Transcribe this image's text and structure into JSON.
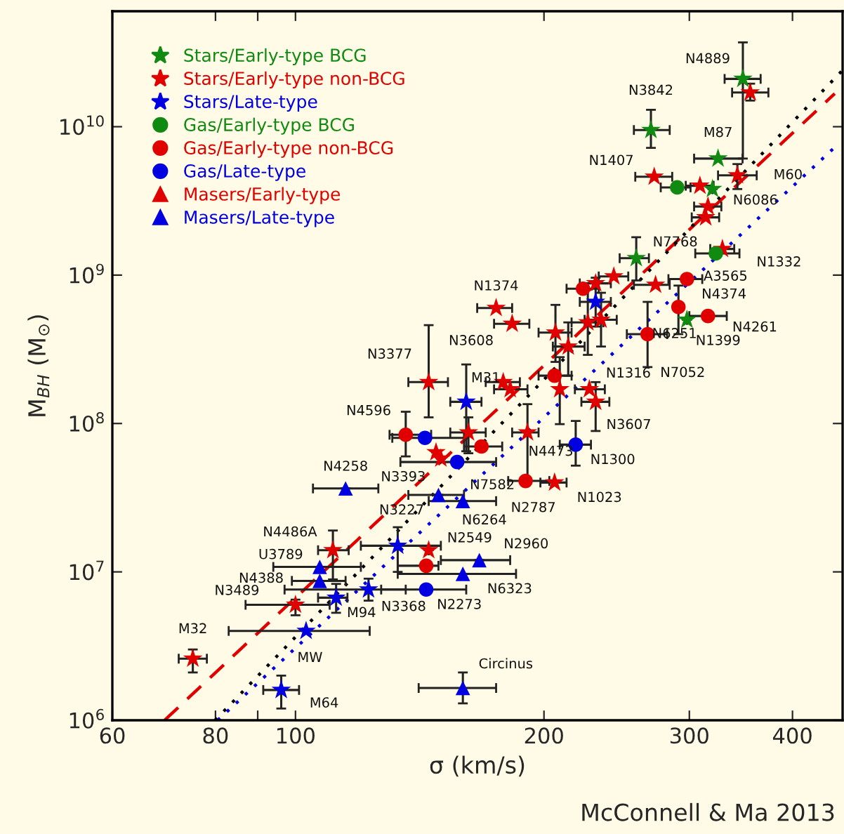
{
  "chart_data": {
    "type": "scatter",
    "xlabel": "σ (km/s)",
    "ylabel": "M$_{BH}$ (M$_{⊙}$)",
    "log": "xy",
    "xlim": [
      60,
      460
    ],
    "ylim": [
      1000000.0,
      60000000000.0
    ],
    "xticks": [
      60,
      80,
      {
        "value": 90,
        "label": null
      },
      100,
      200,
      300,
      400
    ],
    "yticks": [
      {
        "value": 1000000.0,
        "label": "10$^{6}$"
      },
      {
        "value": 10000000.0,
        "label": "10$^{7}$"
      },
      {
        "value": 100000000.0,
        "label": "10$^{8}$"
      },
      {
        "value": 1000000000.0,
        "label": "10$^{9}$"
      },
      {
        "value": 10000000000.0,
        "label": "10$^{10}$"
      }
    ],
    "grid": false,
    "legend": "top left",
    "series": [
      {
        "name": "Stars/Early-type BCG",
        "color": "#108a10",
        "marker": "star",
        "x": [
          348.3,
          269.5,
          325,
          320,
          258.7,
          298
        ],
        "values": [
          21000000000.0,
          9500000000.0,
          6100000000.0,
          3800000000.0,
          1300000000.0,
          500000000.0
        ],
        "xerrors": [
          [
            331,
            366
          ],
          [
            257,
            284
          ],
          [
            304,
            348
          ],
          null,
          [
            247,
            268
          ],
          null
        ],
        "errors": [
          [
            6100000000.0,
            37000000000.0
          ],
          [
            7200000000.0,
            13000000000.0
          ],
          null,
          null,
          [
            920000000.0,
            1800000000.0
          ],
          null
        ]
      },
      {
        "name": "Stars/Early-type non-BCG",
        "color": "#e00000",
        "marker": "star",
        "x": [
          75.1,
          100,
          111,
          145,
          145,
          148,
          150,
          162,
          191,
          206,
          178.5,
          182,
          209,
          227,
          231,
          175,
          183,
          206.5,
          214,
          226,
          234.5,
          231,
          243,
          273,
          329,
          316,
          314,
          309,
          272,
          343,
          355.5
        ],
        "values": [
          2600000.0,
          6000000.0,
          14000000.0,
          14000000.0,
          190000000.0,
          64000000.0,
          58000000.0,
          87000000.0,
          87000000.0,
          40000000.0,
          190000000.0,
          170000000.0,
          170000000.0,
          170000000.0,
          140000000.0,
          600000000.0,
          470000000.0,
          410000000.0,
          330000000.0,
          480000000.0,
          500000000.0,
          880000000.0,
          980000000.0,
          860000000.0,
          1500000000.0,
          2900000000.0,
          2450000000.0,
          4000000000.0,
          4600000000.0,
          4700000000.0,
          17000000000.0
        ],
        "xerrors": [
          [
            72.2,
            78.1
          ],
          [
            87,
            110
          ],
          [
            106.5,
            116
          ],
          null,
          [
            137,
            153
          ],
          null,
          null,
          [
            154,
            170
          ],
          [
            183,
            197
          ],
          [
            198,
            213
          ],
          [
            170,
            187
          ],
          [
            174,
            191
          ],
          null,
          [
            218,
            237
          ],
          [
            222,
            240
          ],
          [
            166,
            183
          ],
          [
            174,
            192
          ],
          [
            197,
            216
          ],
          [
            205,
            224
          ],
          [
            216,
            236
          ],
          [
            224,
            245
          ],
          [
            221,
            241
          ],
          [
            233,
            253
          ],
          [
            257,
            284
          ],
          [
            318,
            340
          ],
          [
            304,
            328
          ],
          [
            302,
            326
          ],
          [
            297,
            321
          ],
          [
            258,
            286
          ],
          [
            325,
            362
          ],
          [
            338,
            374
          ]
        ],
        "errors": [
          [
            2100000.0,
            3000000.0
          ],
          [
            5100000.0,
            6500000.0
          ],
          [
            8900000.0,
            19000000.0
          ],
          null,
          [
            110000000.0,
            460000000.0
          ],
          null,
          null,
          [
            63000000.0,
            110000000.0
          ],
          [
            41000000.0,
            135000000.0
          ],
          null,
          null,
          null,
          [
            99000000.0,
            280000000.0
          ],
          null,
          [
            89000000.0,
            190000000.0
          ],
          null,
          null,
          [
            260000000.0,
            630000000.0
          ],
          [
            210000000.0,
            480000000.0
          ],
          [
            290000000.0,
            800000000.0
          ],
          [
            330000000.0,
            760000000.0
          ],
          null,
          null,
          null,
          null,
          null,
          null,
          null,
          null,
          [
            3800000000.0,
            5600000000.0
          ],
          [
            15000000000.0,
            19500000000.0
          ]
        ]
      },
      {
        "name": "Stars/Late-type",
        "color": "#0000e0",
        "marker": "star",
        "x": [
          96.1,
          103,
          112,
          122.6,
          133,
          161,
          231
        ],
        "values": [
          1600000.0,
          4000000.0,
          6700000.0,
          7600000.0,
          15000000.0,
          140000000.0,
          660000000.0
        ],
        "xerrors": [
          [
            91.4,
            101
          ],
          [
            83,
            123
          ],
          [
            106.5,
            115.6
          ],
          [
            97,
            136
          ],
          [
            120,
            150
          ],
          [
            154,
            168
          ],
          [
            221,
            241
          ]
        ],
        "errors": [
          [
            1200000.0,
            2000000.0
          ],
          null,
          [
            5300000.0,
            8300000.0
          ],
          [
            6400000.0,
            9000000.0
          ],
          [
            10000000.0,
            20000000.0
          ],
          [
            65000000.0,
            250000000.0
          ],
          [
            450000000.0,
            960000000.0
          ]
        ]
      },
      {
        "name": "Gas/Early-type BCG",
        "color": "#108a10",
        "marker": "circle",
        "x": [
          290,
          323
        ],
        "values": [
          3900000000.0,
          1400000000.0
        ],
        "xerrors": [
          [
            277,
            301
          ],
          [
            305,
            345
          ]
        ],
        "errors": [
          null,
          null
        ]
      },
      {
        "name": "Gas/Early-type non-BCG",
        "color": "#e00000",
        "marker": "circle",
        "x": [
          136,
          144,
          168,
          190,
          206,
          223,
          298,
          291,
          316,
          267
        ],
        "values": [
          84000000.0,
          11000000.0,
          70000000.0,
          41000000.0,
          210000000.0,
          810000000.0,
          940000000.0,
          610000000.0,
          530000000.0,
          400000000.0
        ],
        "xerrors": [
          [
            130,
            146
          ],
          [
            133,
            149
          ],
          [
            160,
            178
          ],
          [
            181,
            203
          ],
          [
            197,
            216
          ],
          [
            213,
            233
          ],
          [
            283,
            311
          ],
          null,
          [
            300,
            333
          ],
          [
            252,
            282
          ]
        ],
        "errors": [
          [
            60000000.0,
            120000000.0
          ],
          null,
          null,
          null,
          null,
          null,
          null,
          [
            400000000.0,
            850000000.0
          ],
          null,
          [
            240000000.0,
            660000000.0
          ]
        ]
      },
      {
        "name": "Gas/Late-type",
        "color": "#0000e0",
        "marker": "circle",
        "x": [
          144,
          218.5,
          157,
          143.5
        ],
        "values": [
          7600000.0,
          72000000.0,
          55000000.0,
          80000000.0
        ],
        "xerrors": [
          [
            127,
            161
          ],
          [
            209,
            228
          ],
          [
            134,
            175
          ],
          [
            131,
            160
          ]
        ],
        "errors": [
          null,
          [
            52000000.0,
            104000000.0
          ],
          null,
          null
        ]
      },
      {
        "name": "Masers/Early-type",
        "color": "#e00000",
        "marker": "triangle"
      },
      {
        "name": "Masers/Late-type",
        "color": "#0000e0",
        "marker": "triangle",
        "x": [
          115,
          107,
          107,
          159.5,
          149,
          167,
          159.5,
          159.5
        ],
        "values": [
          36500000.0,
          8700000.0,
          10800000.0,
          30000000.0,
          33000000.0,
          12000000.0,
          9700000.0,
          1650000.0
        ],
        "xerrors": [
          [
            105,
            126
          ],
          [
            99,
            115
          ],
          [
            94,
            120
          ],
          [
            145,
            175
          ],
          [
            137,
            160
          ],
          [
            150,
            182
          ],
          [
            133,
            185
          ],
          [
            141,
            175
          ]
        ],
        "errors": [
          null,
          null,
          null,
          null,
          null,
          null,
          null,
          [
            1300000.0,
            2100000.0
          ]
        ]
      },
      {
        "type": "line",
        "color": "#e00000",
        "line_style": "dashed",
        "x": [
          69.4,
          450
        ],
        "values": [
          1000000.0,
          16700000000.0
        ]
      },
      {
        "type": "line",
        "color": "#000000",
        "line_style": "dotted",
        "x": [
          79.9,
          460
        ],
        "values": [
          1000000.0,
          24000000000.0
        ]
      },
      {
        "type": "line",
        "color": "#0000e0",
        "line_style": "dotted",
        "x": [
          80.5,
          454
        ],
        "values": [
          1000000.0,
          7600000000.0
        ]
      }
    ],
    "annotations": [
      {
        "text": "N4889",
        "x": 348.3,
        "y": 21000000000.0
      },
      {
        "text": "N3842",
        "x": 269.5,
        "y": 9500000000.0
      },
      {
        "text": "M87",
        "x": 325,
        "y": 6100000000.0
      },
      {
        "text": "N1407",
        "x": 272,
        "y": 4600000000.0
      },
      {
        "text": "M60",
        "x": 343,
        "y": 4700000000.0
      },
      {
        "text": "N6086",
        "x": 320,
        "y": 3800000000.0
      },
      {
        "text": "N7768",
        "x": 258.7,
        "y": 1300000000.0
      },
      {
        "text": "N1332",
        "x": 329,
        "y": 1500000000.0
      },
      {
        "text": "A3565",
        "x": 323,
        "y": 1400000000.0
      },
      {
        "text": "N4374",
        "x": 298,
        "y": 940000000.0
      },
      {
        "text": "N1374",
        "x": 175,
        "y": 600000000.0
      },
      {
        "text": "N3608",
        "x": 183,
        "y": 470000000.0
      },
      {
        "text": "N1399",
        "x": 298,
        "y": 500000000.0
      },
      {
        "text": "N4261",
        "x": 316,
        "y": 530000000.0
      },
      {
        "text": "N6251",
        "x": 291,
        "y": 610000000.0
      },
      {
        "text": "N7052",
        "x": 267,
        "y": 400000000.0
      },
      {
        "text": "N3377",
        "x": 145,
        "y": 190000000.0
      },
      {
        "text": "M31",
        "x": 161,
        "y": 140000000.0
      },
      {
        "text": "N1316",
        "x": 227,
        "y": 170000000.0
      },
      {
        "text": "N3607",
        "x": 231,
        "y": 140000000.0
      },
      {
        "text": "N4596",
        "x": 136,
        "y": 84000000.0
      },
      {
        "text": "N4473",
        "x": 191,
        "y": 87000000.0
      },
      {
        "text": "N1300",
        "x": 218.5,
        "y": 72000000.0
      },
      {
        "text": "N7582",
        "x": 157,
        "y": 55000000.0
      },
      {
        "text": "N2787",
        "x": 190,
        "y": 41000000.0
      },
      {
        "text": "N1023",
        "x": 206,
        "y": 40000000.0
      },
      {
        "text": "N4258",
        "x": 115,
        "y": 36500000.0
      },
      {
        "text": "N3393",
        "x": 149,
        "y": 33000000.0
      },
      {
        "text": "N6264",
        "x": 159.5,
        "y": 30000000.0
      },
      {
        "text": "N3227",
        "x": 133,
        "y": 15000000.0
      },
      {
        "text": "N4486A",
        "x": 111,
        "y": 14000000.0
      },
      {
        "text": "N2549",
        "x": 145,
        "y": 14000000.0
      },
      {
        "text": "N2960",
        "x": 167,
        "y": 12000000.0
      },
      {
        "text": "N6323",
        "x": 159.5,
        "y": 9700000.0
      },
      {
        "text": "U3789",
        "x": 107,
        "y": 10800000.0
      },
      {
        "text": "N4388",
        "x": 107,
        "y": 8700000.0
      },
      {
        "text": "N3368",
        "x": 122.6,
        "y": 7600000.0
      },
      {
        "text": "N2273",
        "x": 144,
        "y": 7600000.0
      },
      {
        "text": "N3489",
        "x": 100,
        "y": 6000000.0
      },
      {
        "text": "M94",
        "x": 112,
        "y": 6700000.0
      },
      {
        "text": "MW",
        "x": 103,
        "y": 4000000.0
      },
      {
        "text": "M32",
        "x": 75.1,
        "y": 2600000.0
      },
      {
        "text": "M64",
        "x": 96.1,
        "y": 1600000.0
      },
      {
        "text": "Circinus",
        "x": 159.5,
        "y": 1650000.0
      },
      "McConnell & Ma 2013"
    ]
  }
}
